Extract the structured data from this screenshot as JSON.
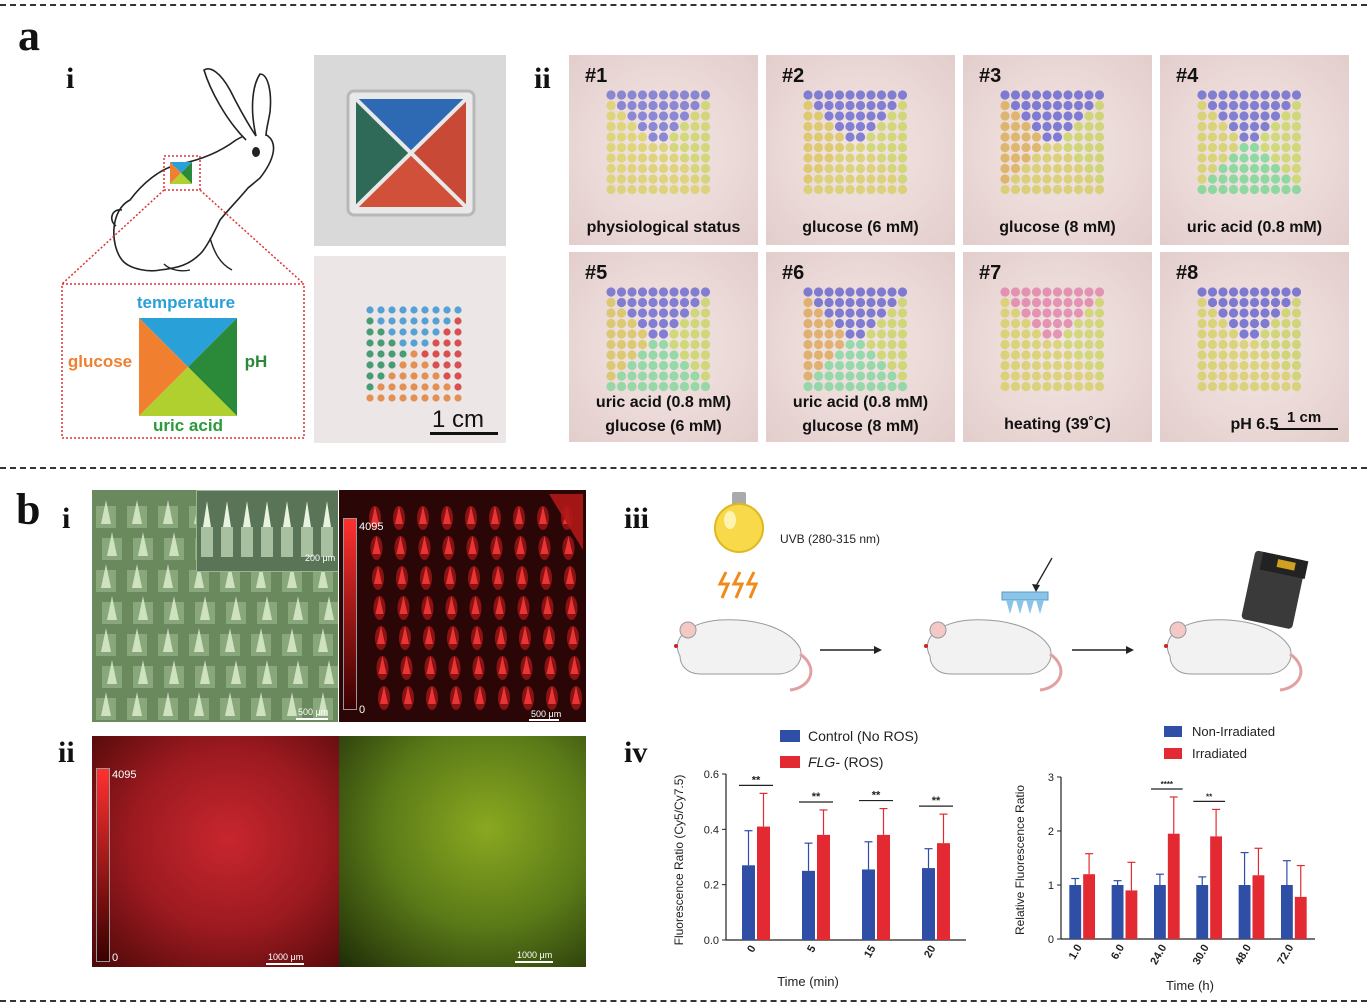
{
  "panel_a": {
    "letter": "a",
    "sub_i": "i",
    "sub_ii": "ii",
    "schematic_labels": {
      "temperature": "temperature",
      "glucose": "glucose",
      "pH": "pH",
      "uric_acid": "uric acid"
    },
    "photo_scale_bar": "1 cm",
    "tiles": [
      {
        "num": "#1",
        "caption_lines": [
          "physiological status"
        ],
        "colors": {
          "top": "#6a6ad0",
          "left": "#d9d25a",
          "right": "#c9d45a",
          "bottom": "#d8cf5e"
        }
      },
      {
        "num": "#2",
        "caption_lines": [
          "glucose (6 mM)"
        ],
        "colors": {
          "top": "#5e5ed0",
          "left": "#d8c34e",
          "right": "#c8d45a",
          "bottom": "#d6cd5c"
        }
      },
      {
        "num": "#3",
        "caption_lines": [
          "glucose (8 mM)"
        ],
        "colors": {
          "top": "#5a5ad0",
          "left": "#d9a84a",
          "right": "#c6d258",
          "bottom": "#d4cb5a"
        }
      },
      {
        "num": "#4",
        "caption_lines": [
          "uric acid (0.8 mM)"
        ],
        "colors": {
          "top": "#5d5dce",
          "left": "#d2cf58",
          "right": "#c6d65a",
          "bottom": "#6fd68c"
        }
      },
      {
        "num": "#5",
        "caption_lines": [
          "uric acid (0.8 mM)",
          "glucose (6 mM)"
        ],
        "colors": {
          "top": "#5e5ece",
          "left": "#d6c250",
          "right": "#c6d458",
          "bottom": "#78d694"
        }
      },
      {
        "num": "#6",
        "caption_lines": [
          "uric acid (0.8 mM)",
          "glucose (8 mM)"
        ],
        "colors": {
          "top": "#5a5acc",
          "left": "#dca24c",
          "right": "#c6d458",
          "bottom": "#7ad69a"
        }
      },
      {
        "num": "#7",
        "caption_lines": [
          "heating (39˚C)"
        ],
        "colors": {
          "top": "#e07aa4",
          "left": "#d4cf58",
          "right": "#c8d45a",
          "bottom": "#d6cd5c"
        }
      },
      {
        "num": "#8",
        "caption_lines": [
          "pH 6.5"
        ],
        "colors": {
          "top": "#5858cc",
          "left": "#d2cf58",
          "right": "#c6d258",
          "bottom": "#d6cd5c"
        }
      }
    ],
    "tiles_scale_bar": "1 cm"
  },
  "panel_b": {
    "letter": "b",
    "sub_i": "i",
    "sub_ii": "ii",
    "sub_iii": "iii",
    "sub_iv": "iv",
    "micro_i": {
      "inset_scale": "200 μm",
      "green_scale": "500 μm",
      "red_scale": "500 μm",
      "colorbar_max": "4095",
      "colorbar_min": "0"
    },
    "micro_ii": {
      "red_scale": "1000 μm",
      "green_scale": "1000 μm",
      "colorbar_max": "4095",
      "colorbar_min": "0"
    },
    "iii_uvb_label": "UVB (280-315 nm)"
  },
  "chart_data": [
    {
      "type": "bar",
      "categories": [
        "0",
        "5",
        "15",
        "20"
      ],
      "series": [
        {
          "name": "Control (No ROS)",
          "color": "#2f4ea6",
          "values": [
            0.27,
            0.25,
            0.255,
            0.26
          ],
          "errors": [
            0.125,
            0.1,
            0.1,
            0.07
          ]
        },
        {
          "name_prefix": "FLG-",
          "name_suffix": " (ROS)",
          "color": "#e32a32",
          "values": [
            0.41,
            0.38,
            0.38,
            0.35
          ],
          "errors": [
            0.12,
            0.09,
            0.095,
            0.105
          ]
        }
      ],
      "significance": [
        "**",
        "**",
        "**",
        "**"
      ],
      "xlabel": "Time (min)",
      "ylabel": "Fluorescence Ratio (Cy5/Cy7.5)",
      "ylim": [
        0,
        0.6
      ],
      "yticks": [
        "0.0",
        "0.2",
        "0.4",
        "0.6"
      ],
      "legend": "top"
    },
    {
      "type": "bar",
      "categories": [
        "1.0",
        "6.0",
        "24.0",
        "30.0",
        "48.0",
        "72.0"
      ],
      "series": [
        {
          "name": "Non-Irradiated",
          "color": "#2f4ea6",
          "values": [
            1.0,
            1.0,
            1.0,
            1.0,
            1.0,
            1.0
          ],
          "errors": [
            0.12,
            0.08,
            0.2,
            0.15,
            0.6,
            0.45
          ]
        },
        {
          "name": "Irradiated",
          "color": "#e32a32",
          "values": [
            1.2,
            0.9,
            1.95,
            1.9,
            1.18,
            0.78
          ],
          "errors": [
            0.38,
            0.52,
            0.68,
            0.5,
            0.5,
            0.58
          ]
        }
      ],
      "significance": [
        "",
        "",
        "****",
        "**",
        "",
        ""
      ],
      "xlabel": "Time (h)",
      "ylabel": "Relative Fluorescence Ratio",
      "ylim": [
        0,
        3
      ],
      "yticks": [
        "0",
        "1",
        "2",
        "3"
      ],
      "legend": "top"
    }
  ]
}
